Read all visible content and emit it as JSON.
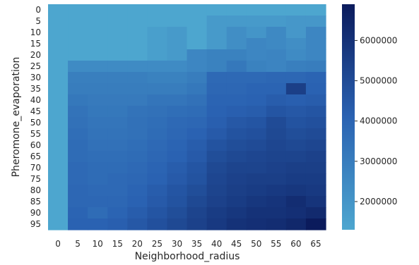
{
  "chart_data": {
    "type": "heatmap",
    "title": "",
    "xlabel": "Neighborhood_radius",
    "ylabel": "Pheromone_evaporation",
    "x_categories": [
      "0",
      "5",
      "10",
      "15",
      "20",
      "25",
      "30",
      "35",
      "40",
      "45",
      "50",
      "55",
      "60",
      "65"
    ],
    "y_categories": [
      "0",
      "5",
      "10",
      "15",
      "20",
      "25",
      "30",
      "35",
      "40",
      "45",
      "50",
      "55",
      "60",
      "65",
      "70",
      "75",
      "80",
      "85",
      "90",
      "95"
    ],
    "values": [
      [
        1300000,
        1300000,
        1300000,
        1300000,
        1300000,
        1300000,
        1300000,
        1300000,
        1300000,
        1300000,
        1300000,
        1300000,
        1300000,
        1300000
      ],
      [
        1300000,
        1300000,
        1300000,
        1300000,
        1300000,
        1300000,
        1300000,
        1300000,
        1800000,
        1800000,
        1800000,
        1800000,
        1900000,
        1900000
      ],
      [
        1300000,
        1300000,
        1300000,
        1300000,
        1300000,
        1600000,
        1800000,
        1300000,
        1800000,
        2300000,
        2000000,
        2500000,
        1900000,
        2600000
      ],
      [
        1300000,
        1300000,
        1300000,
        1300000,
        1300000,
        1600000,
        1800000,
        1300000,
        1800000,
        2300000,
        2600000,
        2500000,
        2300000,
        2600000
      ],
      [
        1300000,
        1300000,
        1300000,
        1300000,
        1300000,
        1600000,
        1800000,
        2600000,
        2800000,
        2800000,
        2600000,
        2700000,
        2400000,
        2600000
      ],
      [
        1300000,
        2400000,
        2400000,
        2400000,
        2400000,
        2400000,
        2400000,
        2600000,
        2800000,
        3200000,
        2800000,
        2700000,
        2900000,
        3000000
      ],
      [
        1300000,
        2900000,
        2900000,
        2900000,
        2900000,
        2800000,
        2800000,
        3000000,
        3800000,
        3800000,
        3800000,
        3900000,
        3900000,
        4000000
      ],
      [
        1300000,
        3000000,
        3000000,
        3000000,
        3000000,
        3000000,
        3000000,
        3200000,
        3900000,
        3900000,
        4000000,
        4000000,
        5500000,
        4100000
      ],
      [
        1300000,
        3200000,
        3100000,
        3100000,
        3100000,
        3300000,
        3300000,
        3500000,
        4000000,
        4000000,
        4100000,
        4300000,
        4200000,
        4300000
      ],
      [
        1300000,
        3400000,
        3200000,
        3200000,
        3400000,
        3500000,
        3600000,
        3700000,
        4100000,
        4200000,
        4300000,
        4600000,
        4500000,
        4600000
      ],
      [
        1300000,
        3500000,
        3300000,
        3300000,
        3500000,
        3600000,
        3800000,
        3900000,
        4200000,
        4500000,
        4600000,
        5000000,
        4700000,
        4800000
      ],
      [
        1300000,
        3600000,
        3400000,
        3400000,
        3500000,
        3700000,
        3900000,
        4100000,
        4400000,
        4700000,
        4800000,
        5100000,
        4900000,
        5000000
      ],
      [
        1300000,
        3700000,
        3500000,
        3500000,
        3600000,
        3800000,
        4000000,
        4300000,
        4700000,
        4900000,
        5000000,
        5200000,
        5100000,
        5200000
      ],
      [
        1300000,
        3700000,
        3600000,
        3600000,
        3700000,
        3900000,
        4100000,
        4400000,
        4900000,
        5100000,
        5200000,
        5300000,
        5300000,
        5400000
      ],
      [
        1300000,
        3800000,
        3700000,
        3700000,
        3800000,
        4000000,
        4300000,
        4600000,
        5100000,
        5300000,
        5300000,
        5400000,
        5500000,
        5500000
      ],
      [
        1300000,
        3800000,
        3700000,
        3800000,
        3900000,
        4100000,
        4400000,
        4700000,
        5200000,
        5400000,
        5500000,
        5500000,
        5600000,
        5600000
      ],
      [
        1300000,
        3900000,
        3800000,
        3800000,
        4000000,
        4300000,
        4600000,
        4900000,
        5300000,
        5500000,
        5600000,
        5700000,
        5800000,
        5700000
      ],
      [
        1300000,
        3900000,
        3900000,
        3900000,
        4100000,
        4400000,
        4700000,
        5100000,
        5400000,
        5600000,
        5800000,
        5900000,
        6200000,
        5900000
      ],
      [
        1300000,
        4000000,
        3700000,
        4000000,
        4300000,
        4600000,
        4900000,
        5300000,
        5600000,
        5800000,
        6000000,
        6000000,
        6100000,
        6300000
      ],
      [
        1300000,
        4100000,
        4100000,
        4200000,
        4500000,
        4800000,
        5100000,
        5400000,
        5700000,
        6000000,
        6100000,
        6200000,
        6400000,
        6900000
      ]
    ],
    "colorbar": {
      "min": 1300000,
      "max": 6900000,
      "ticks": [
        2000000,
        3000000,
        4000000,
        5000000,
        6000000
      ],
      "tick_labels": [
        "2000000",
        "3000000",
        "4000000",
        "5000000",
        "6000000"
      ]
    },
    "colormap": [
      "#4da6cf",
      "#2a62b2",
      "#0b1b5c"
    ],
    "grid": false,
    "legend": "colorbar-right"
  }
}
